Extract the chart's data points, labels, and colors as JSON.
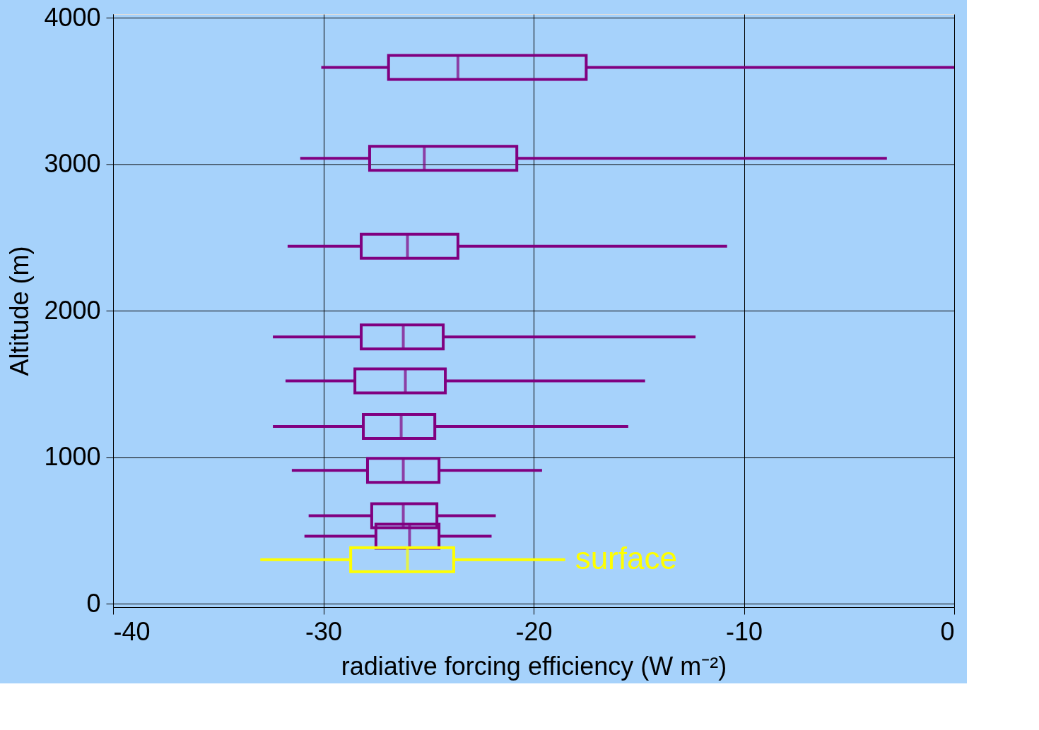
{
  "chart_data": {
    "type": "box",
    "orientation": "horizontal",
    "xlabel": "radiative forcing efficiency (W m⁻²)",
    "ylabel": "Altitude (m)",
    "xlim": [
      -40,
      0
    ],
    "xticks": [
      -40,
      -30,
      -20,
      -10,
      0
    ],
    "ylim": [
      0,
      4000
    ],
    "yticks": [
      0,
      1000,
      2000,
      3000,
      4000
    ],
    "grid": true,
    "legend": false,
    "series": [
      {
        "color": "#800080",
        "x": [
          3660,
          3040,
          2440,
          1820,
          1520,
          1210,
          910,
          600,
          460
        ],
        "boxes": [
          {
            "low": -30.1,
            "q1": -26.9,
            "median": -23.6,
            "q3": -17.5,
            "high": 0
          },
          {
            "low": -31.1,
            "q1": -27.8,
            "median": -25.2,
            "q3": -20.8,
            "high": -3.2
          },
          {
            "low": -31.7,
            "q1": -28.2,
            "median": -26.0,
            "q3": -23.6,
            "high": -10.8
          },
          {
            "low": -32.4,
            "q1": -28.2,
            "median": -26.2,
            "q3": -24.3,
            "high": -12.3
          },
          {
            "low": -31.8,
            "q1": -28.5,
            "median": -26.1,
            "q3": -24.2,
            "high": -14.7
          },
          {
            "low": -32.4,
            "q1": -28.1,
            "median": -26.3,
            "q3": -24.7,
            "high": -15.5
          },
          {
            "low": -31.5,
            "q1": -27.9,
            "median": -26.2,
            "q3": -24.5,
            "high": -19.6
          },
          {
            "low": -30.7,
            "q1": -27.7,
            "median": -26.2,
            "q3": -24.6,
            "high": -21.8
          },
          {
            "low": -30.9,
            "q1": -27.5,
            "median": -25.9,
            "q3": -24.5,
            "high": -22.0
          }
        ]
      },
      {
        "name": "surface",
        "color": "#ffff00",
        "x": [
          300
        ],
        "boxes": [
          {
            "low": -33.0,
            "q1": -28.7,
            "median": -26.0,
            "q3": -23.8,
            "high": -18.5
          }
        ]
      }
    ]
  }
}
